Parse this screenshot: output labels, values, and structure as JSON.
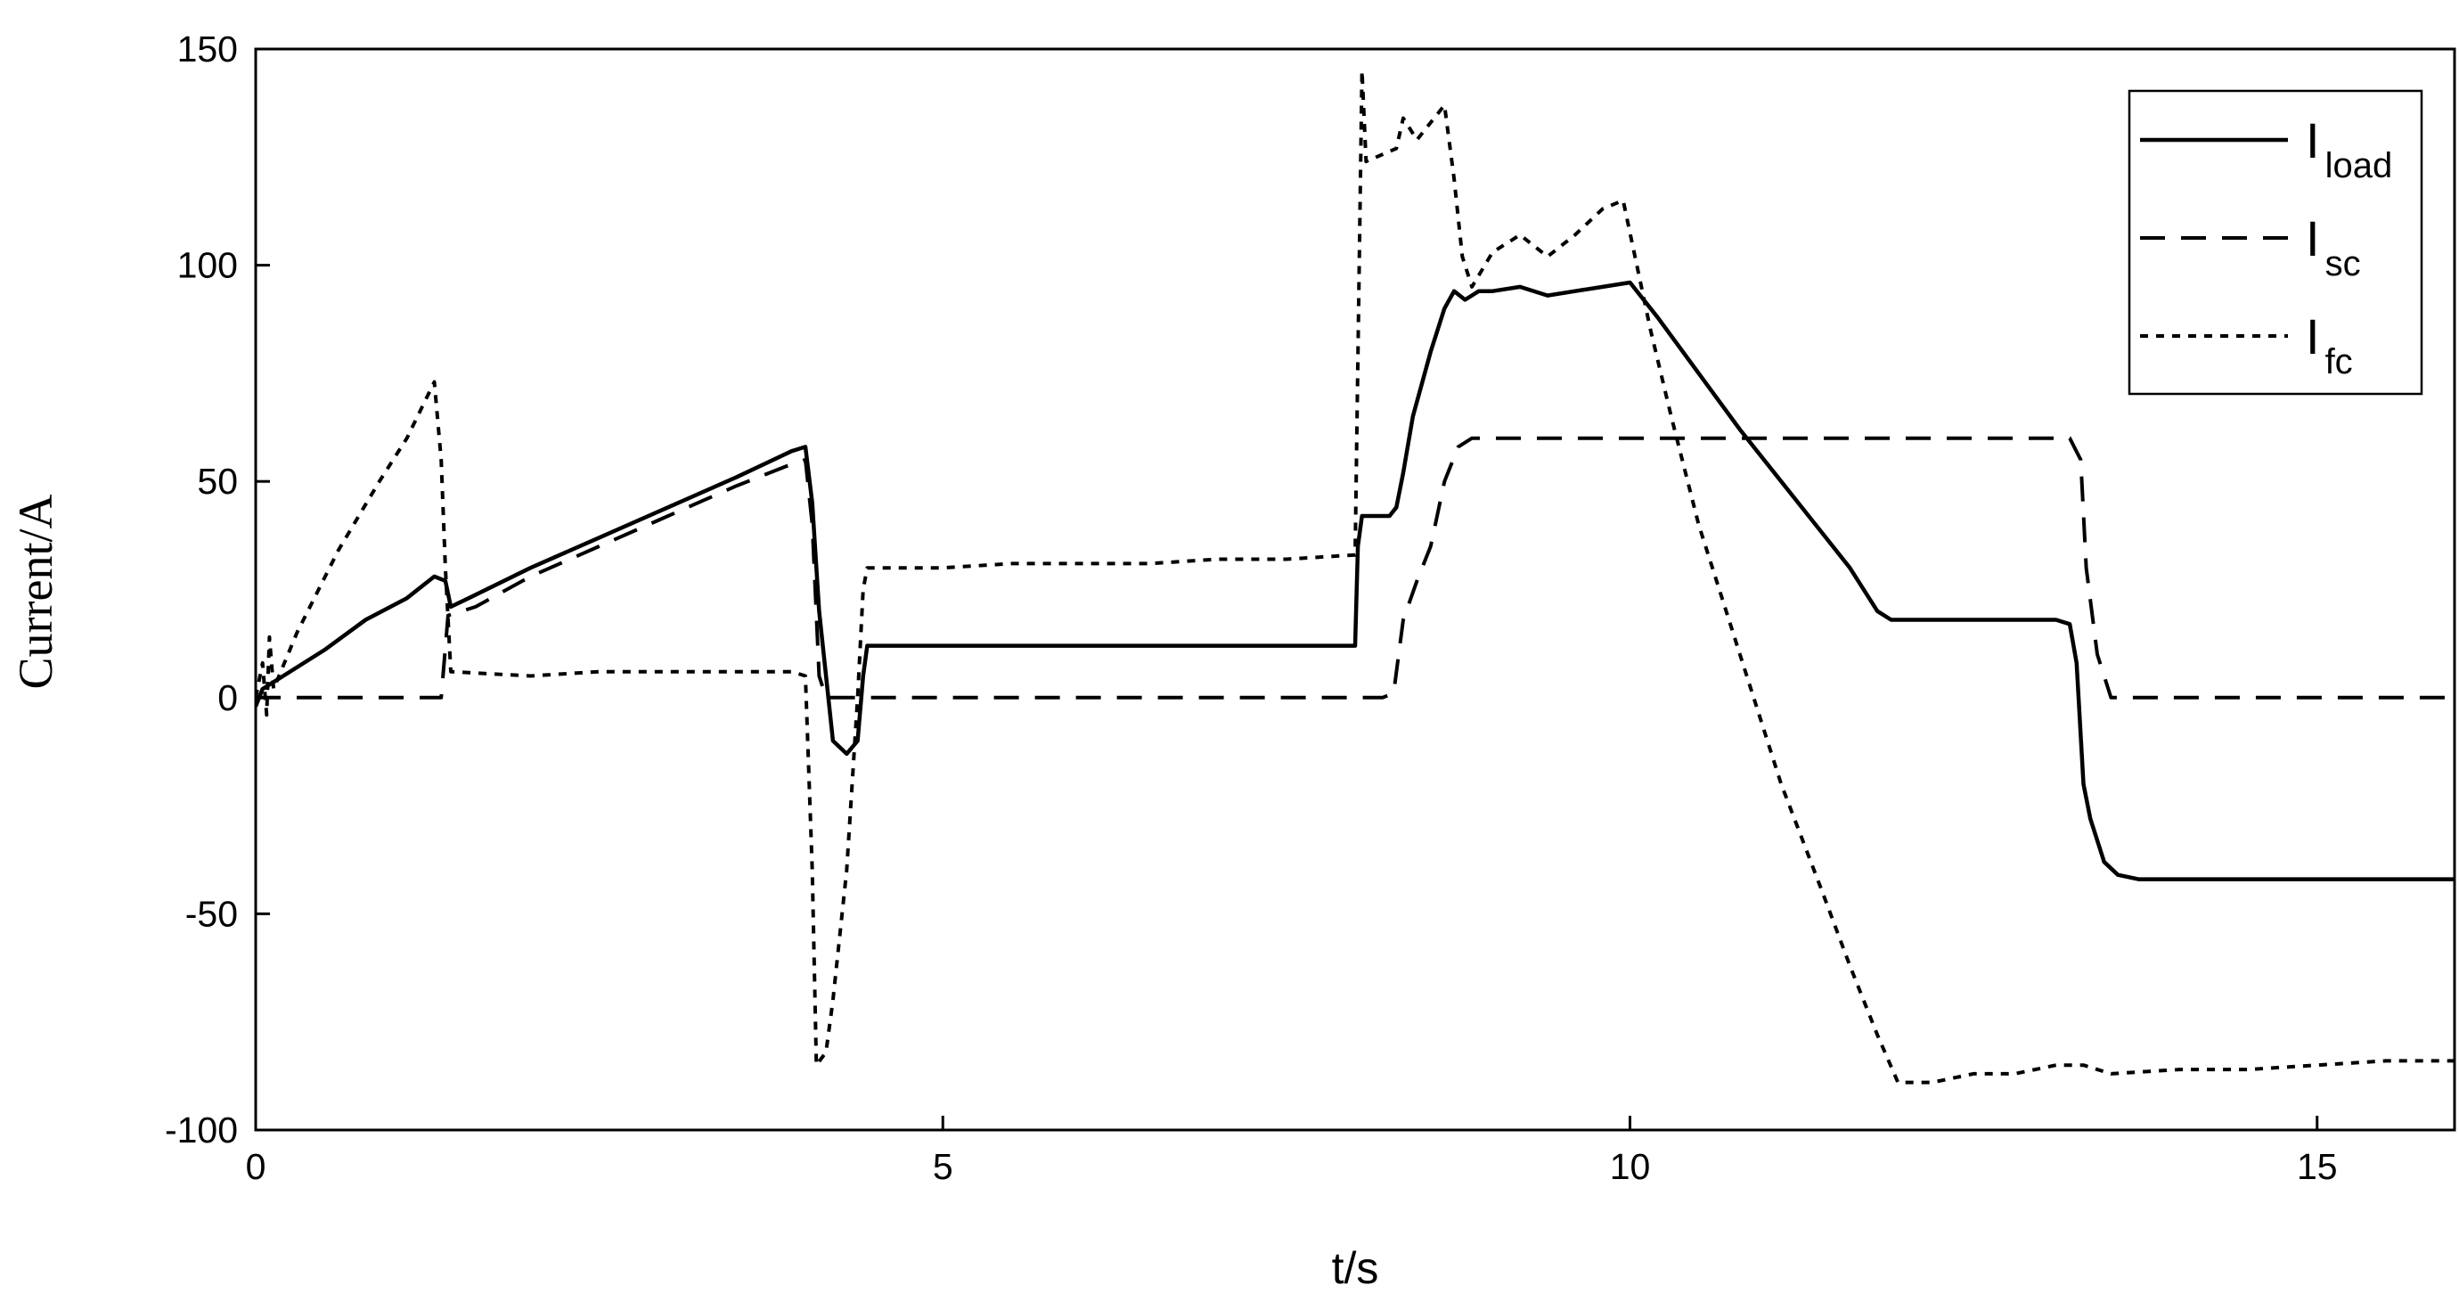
{
  "chart_data": {
    "type": "line",
    "title": "",
    "xlabel": "t/s",
    "ylabel": "Current/A",
    "xlim": [
      0,
      16
    ],
    "ylim": [
      -100,
      150
    ],
    "xticks": [
      0,
      5,
      10,
      15
    ],
    "yticks": [
      -100,
      -50,
      0,
      50,
      100,
      150
    ],
    "grid": false,
    "legend_position": "top-right",
    "series": [
      {
        "name": "I_load",
        "legend_main": "I",
        "legend_sub": "load",
        "style": "solid",
        "color": "#000000",
        "points": [
          [
            0,
            -2
          ],
          [
            0.05,
            2
          ],
          [
            0.2,
            5
          ],
          [
            0.5,
            11
          ],
          [
            0.8,
            18
          ],
          [
            1.1,
            23
          ],
          [
            1.3,
            28
          ],
          [
            1.38,
            27
          ],
          [
            1.42,
            21
          ],
          [
            1.55,
            23
          ],
          [
            2.0,
            30
          ],
          [
            2.5,
            37
          ],
          [
            3.0,
            44
          ],
          [
            3.5,
            51
          ],
          [
            3.9,
            57
          ],
          [
            4.0,
            58
          ],
          [
            4.05,
            45
          ],
          [
            4.1,
            20
          ],
          [
            4.2,
            -10
          ],
          [
            4.3,
            -13
          ],
          [
            4.38,
            -10
          ],
          [
            4.42,
            5
          ],
          [
            4.45,
            12
          ],
          [
            5,
            12
          ],
          [
            6,
            12
          ],
          [
            7,
            12
          ],
          [
            8.0,
            12
          ],
          [
            8.02,
            35
          ],
          [
            8.05,
            42
          ],
          [
            8.25,
            42
          ],
          [
            8.3,
            44
          ],
          [
            8.35,
            52
          ],
          [
            8.42,
            65
          ],
          [
            8.55,
            80
          ],
          [
            8.65,
            90
          ],
          [
            8.72,
            94
          ],
          [
            8.8,
            92
          ],
          [
            8.9,
            94
          ],
          [
            9.0,
            94
          ],
          [
            9.2,
            95
          ],
          [
            9.4,
            93
          ],
          [
            9.6,
            94
          ],
          [
            9.8,
            95
          ],
          [
            10.0,
            96
          ],
          [
            10.2,
            88
          ],
          [
            10.5,
            75
          ],
          [
            10.8,
            62
          ],
          [
            11.1,
            50
          ],
          [
            11.4,
            38
          ],
          [
            11.6,
            30
          ],
          [
            11.8,
            20
          ],
          [
            11.9,
            18
          ],
          [
            12.5,
            18
          ],
          [
            13.1,
            18
          ],
          [
            13.2,
            17
          ],
          [
            13.25,
            8
          ],
          [
            13.3,
            -20
          ],
          [
            13.35,
            -28
          ],
          [
            13.45,
            -38
          ],
          [
            13.55,
            -41
          ],
          [
            13.7,
            -42
          ],
          [
            14.5,
            -42
          ],
          [
            15.5,
            -42
          ],
          [
            16,
            -42
          ]
        ]
      },
      {
        "name": "I_sc",
        "legend_main": "I",
        "legend_sub": "sc",
        "style": "dashed",
        "color": "#000000",
        "points": [
          [
            0,
            0
          ],
          [
            0.5,
            0
          ],
          [
            1.0,
            0
          ],
          [
            1.35,
            0
          ],
          [
            1.4,
            19
          ],
          [
            1.6,
            21
          ],
          [
            2.0,
            28
          ],
          [
            2.5,
            35
          ],
          [
            3.0,
            42
          ],
          [
            3.5,
            49
          ],
          [
            3.9,
            54
          ],
          [
            4.0,
            55
          ],
          [
            4.05,
            40
          ],
          [
            4.1,
            5
          ],
          [
            4.15,
            0
          ],
          [
            5,
            0
          ],
          [
            6,
            0
          ],
          [
            7,
            0
          ],
          [
            8,
            0
          ],
          [
            8.2,
            0
          ],
          [
            8.28,
            1
          ],
          [
            8.35,
            18
          ],
          [
            8.45,
            27
          ],
          [
            8.55,
            35
          ],
          [
            8.65,
            50
          ],
          [
            8.75,
            58
          ],
          [
            8.85,
            60
          ],
          [
            9.5,
            60
          ],
          [
            10.5,
            60
          ],
          [
            11.5,
            60
          ],
          [
            12.5,
            60
          ],
          [
            13.2,
            60
          ],
          [
            13.28,
            55
          ],
          [
            13.32,
            30
          ],
          [
            13.4,
            10
          ],
          [
            13.5,
            0
          ],
          [
            14.5,
            0
          ],
          [
            15.5,
            0
          ],
          [
            16,
            0
          ]
        ]
      },
      {
        "name": "I_fc",
        "legend_main": "I",
        "legend_sub": "fc",
        "style": "dotted",
        "color": "#000000",
        "points": [
          [
            0,
            0
          ],
          [
            0.05,
            8
          ],
          [
            0.08,
            -4
          ],
          [
            0.1,
            14
          ],
          [
            0.13,
            2
          ],
          [
            0.3,
            15
          ],
          [
            0.6,
            34
          ],
          [
            0.9,
            50
          ],
          [
            1.1,
            60
          ],
          [
            1.3,
            73
          ],
          [
            1.35,
            55
          ],
          [
            1.38,
            30
          ],
          [
            1.42,
            6
          ],
          [
            2.0,
            5
          ],
          [
            2.5,
            6
          ],
          [
            3.0,
            6
          ],
          [
            3.5,
            6
          ],
          [
            3.9,
            6
          ],
          [
            4.0,
            5
          ],
          [
            4.05,
            -40
          ],
          [
            4.08,
            -85
          ],
          [
            4.15,
            -82
          ],
          [
            4.2,
            -70
          ],
          [
            4.3,
            -40
          ],
          [
            4.38,
            0
          ],
          [
            4.42,
            25
          ],
          [
            4.45,
            30
          ],
          [
            5.0,
            30
          ],
          [
            5.5,
            31
          ],
          [
            6.0,
            31
          ],
          [
            6.5,
            31
          ],
          [
            7.0,
            32
          ],
          [
            7.5,
            32
          ],
          [
            8.0,
            33
          ],
          [
            8.03,
            100
          ],
          [
            8.05,
            145
          ],
          [
            8.08,
            124
          ],
          [
            8.3,
            127
          ],
          [
            8.35,
            134
          ],
          [
            8.45,
            129
          ],
          [
            8.55,
            133
          ],
          [
            8.65,
            137
          ],
          [
            8.72,
            120
          ],
          [
            8.78,
            102
          ],
          [
            8.85,
            95
          ],
          [
            9.0,
            103
          ],
          [
            9.2,
            107
          ],
          [
            9.4,
            102
          ],
          [
            9.6,
            107
          ],
          [
            9.8,
            113
          ],
          [
            9.95,
            115
          ],
          [
            10.05,
            100
          ],
          [
            10.15,
            85
          ],
          [
            10.3,
            65
          ],
          [
            10.5,
            40
          ],
          [
            10.8,
            10
          ],
          [
            11.1,
            -20
          ],
          [
            11.4,
            -45
          ],
          [
            11.6,
            -62
          ],
          [
            11.8,
            -78
          ],
          [
            11.95,
            -89
          ],
          [
            12.2,
            -89
          ],
          [
            12.5,
            -87
          ],
          [
            12.8,
            -87
          ],
          [
            13.1,
            -85
          ],
          [
            13.3,
            -85
          ],
          [
            13.5,
            -87
          ],
          [
            14.0,
            -86
          ],
          [
            14.5,
            -86
          ],
          [
            15.0,
            -85
          ],
          [
            15.5,
            -84
          ],
          [
            16,
            -84
          ]
        ]
      }
    ]
  }
}
